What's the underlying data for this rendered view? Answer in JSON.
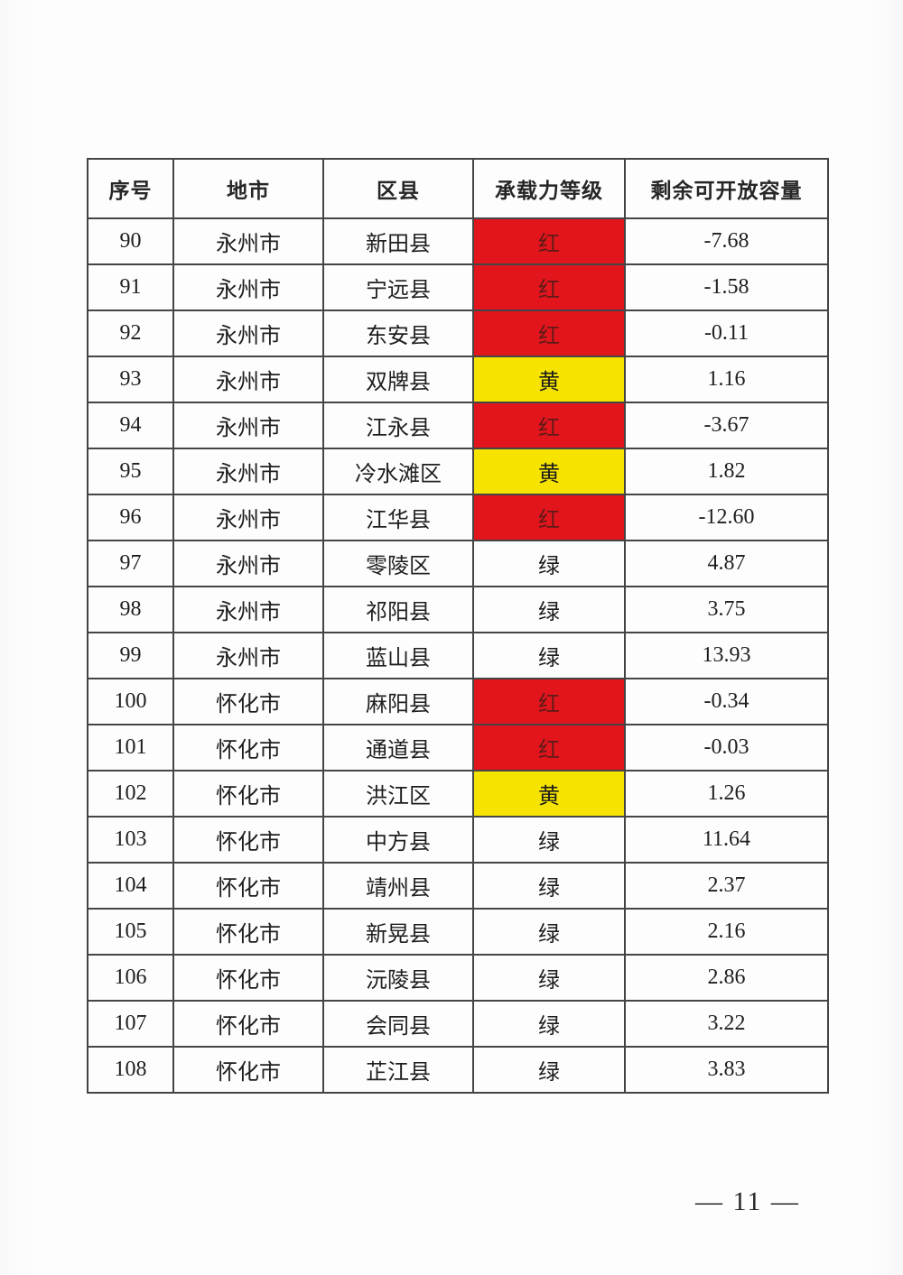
{
  "page": {
    "number_label": "— 11 —"
  },
  "colors": {
    "level_red_bg": "#e2151d",
    "level_yellow_bg": "#f6e400",
    "level_red_text": "#5c1b18",
    "body_text": "#1e1e1e",
    "border": "#454545"
  },
  "table": {
    "columns": [
      {
        "key": "no",
        "label": "序号"
      },
      {
        "key": "city",
        "label": "地市"
      },
      {
        "key": "district",
        "label": "区县"
      },
      {
        "key": "level",
        "label": "承载力等级"
      },
      {
        "key": "capacity",
        "label": "剩余可开放容量"
      }
    ],
    "rows": [
      {
        "no": "90",
        "city": "永州市",
        "district": "新田县",
        "level": "红",
        "level_color": "red",
        "capacity": "-7.68"
      },
      {
        "no": "91",
        "city": "永州市",
        "district": "宁远县",
        "level": "红",
        "level_color": "red",
        "capacity": "-1.58"
      },
      {
        "no": "92",
        "city": "永州市",
        "district": "东安县",
        "level": "红",
        "level_color": "red",
        "capacity": "-0.11"
      },
      {
        "no": "93",
        "city": "永州市",
        "district": "双牌县",
        "level": "黄",
        "level_color": "yellow",
        "capacity": "1.16"
      },
      {
        "no": "94",
        "city": "永州市",
        "district": "江永县",
        "level": "红",
        "level_color": "red",
        "capacity": "-3.67"
      },
      {
        "no": "95",
        "city": "永州市",
        "district": "冷水滩区",
        "level": "黄",
        "level_color": "yellow",
        "capacity": "1.82"
      },
      {
        "no": "96",
        "city": "永州市",
        "district": "江华县",
        "level": "红",
        "level_color": "red",
        "capacity": "-12.60"
      },
      {
        "no": "97",
        "city": "永州市",
        "district": "零陵区",
        "level": "绿",
        "level_color": "green",
        "capacity": "4.87"
      },
      {
        "no": "98",
        "city": "永州市",
        "district": "祁阳县",
        "level": "绿",
        "level_color": "green",
        "capacity": "3.75"
      },
      {
        "no": "99",
        "city": "永州市",
        "district": "蓝山县",
        "level": "绿",
        "level_color": "green",
        "capacity": "13.93"
      },
      {
        "no": "100",
        "city": "怀化市",
        "district": "麻阳县",
        "level": "红",
        "level_color": "red",
        "capacity": "-0.34"
      },
      {
        "no": "101",
        "city": "怀化市",
        "district": "通道县",
        "level": "红",
        "level_color": "red",
        "capacity": "-0.03"
      },
      {
        "no": "102",
        "city": "怀化市",
        "district": "洪江区",
        "level": "黄",
        "level_color": "yellow",
        "capacity": "1.26"
      },
      {
        "no": "103",
        "city": "怀化市",
        "district": "中方县",
        "level": "绿",
        "level_color": "green",
        "capacity": "11.64"
      },
      {
        "no": "104",
        "city": "怀化市",
        "district": "靖州县",
        "level": "绿",
        "level_color": "green",
        "capacity": "2.37"
      },
      {
        "no": "105",
        "city": "怀化市",
        "district": "新晃县",
        "level": "绿",
        "level_color": "green",
        "capacity": "2.16"
      },
      {
        "no": "106",
        "city": "怀化市",
        "district": "沅陵县",
        "level": "绿",
        "level_color": "green",
        "capacity": "2.86"
      },
      {
        "no": "107",
        "city": "怀化市",
        "district": "会同县",
        "level": "绿",
        "level_color": "green",
        "capacity": "3.22"
      },
      {
        "no": "108",
        "city": "怀化市",
        "district": "芷江县",
        "level": "绿",
        "level_color": "green",
        "capacity": "3.83"
      }
    ]
  }
}
